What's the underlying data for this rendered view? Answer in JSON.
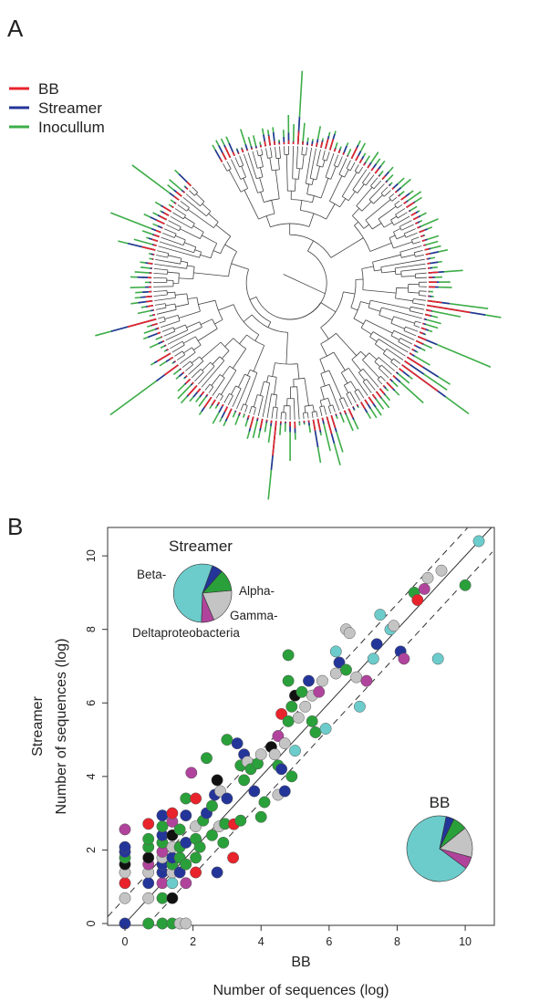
{
  "panel_a_letter": "A",
  "panel_b_letter": "B",
  "colors": {
    "BB": "#e8232b",
    "Streamer": "#24359a",
    "Inocullum": "#3dad48",
    "Beta": "#6ccccb",
    "Alpha": "#2aa03a",
    "Gamma": "#c4c4c4",
    "Delta": "#b0449c",
    "black": "#111111"
  },
  "chart_data": [
    {
      "type": "tree",
      "title": "",
      "legend": [
        {
          "name": "BB",
          "color": "#e8232b"
        },
        {
          "name": "Streamer",
          "color": "#24359a"
        },
        {
          "name": "Inocullum",
          "color": "#3dad48"
        }
      ],
      "legend_position": "top-left"
    },
    {
      "type": "scatter",
      "title": "",
      "xlabel": "BB",
      "xlabel_outer": "Number of sequences (log)",
      "ylabel_line1": "Streamer",
      "ylabel_line2": "Number of sequences (log)",
      "xlim": [
        -0.5,
        10.8
      ],
      "ylim": [
        -0.5,
        10.8
      ],
      "xticks": [
        0,
        2,
        4,
        6,
        8,
        10
      ],
      "yticks": [
        0,
        2,
        4,
        6,
        8,
        10
      ],
      "xtick_labels": [
        "0",
        "2",
        "4",
        "6",
        "8",
        "10"
      ],
      "ytick_labels": [
        "0",
        "2",
        "4",
        "6",
        "8",
        "10"
      ],
      "reference_lines": [
        {
          "slope": 1,
          "intercept": 0,
          "style": "solid"
        },
        {
          "slope": 1,
          "intercept": 0.693,
          "style": "dashed"
        },
        {
          "slope": 1,
          "intercept": -0.693,
          "style": "dashed"
        }
      ],
      "points": [
        {
          "x": 0,
          "y": 0,
          "g": "Streamer"
        },
        {
          "x": 0,
          "y": 0.69,
          "g": "Gamma"
        },
        {
          "x": 0,
          "y": 1.1,
          "g": "BB"
        },
        {
          "x": 0,
          "y": 1.39,
          "g": "Gamma"
        },
        {
          "x": 0,
          "y": 1.61,
          "g": "black"
        },
        {
          "x": 0,
          "y": 1.79,
          "g": "Alpha"
        },
        {
          "x": 0,
          "y": 1.95,
          "g": "Streamer"
        },
        {
          "x": 0,
          "y": 2.08,
          "g": "Streamer"
        },
        {
          "x": 0,
          "y": 2.56,
          "g": "Delta"
        },
        {
          "x": 0.69,
          "y": 0,
          "g": "Alpha"
        },
        {
          "x": 0.69,
          "y": 0.69,
          "g": "Gamma"
        },
        {
          "x": 0.69,
          "y": 1.1,
          "g": "Streamer"
        },
        {
          "x": 0.69,
          "y": 1.39,
          "g": "Gamma"
        },
        {
          "x": 0.69,
          "y": 1.61,
          "g": "Delta"
        },
        {
          "x": 0.69,
          "y": 1.79,
          "g": "black"
        },
        {
          "x": 0.69,
          "y": 2.08,
          "g": "Alpha"
        },
        {
          "x": 0.69,
          "y": 2.3,
          "g": "Alpha"
        },
        {
          "x": 0.69,
          "y": 2.71,
          "g": "BB"
        },
        {
          "x": 1.1,
          "y": 0,
          "g": "Alpha"
        },
        {
          "x": 1.1,
          "y": 0.69,
          "g": "Alpha"
        },
        {
          "x": 1.1,
          "y": 1.1,
          "g": "Delta"
        },
        {
          "x": 1.1,
          "y": 1.39,
          "g": "Streamer"
        },
        {
          "x": 1.1,
          "y": 1.61,
          "g": "Streamer"
        },
        {
          "x": 1.1,
          "y": 1.79,
          "g": "Gamma"
        },
        {
          "x": 1.1,
          "y": 1.95,
          "g": "Delta"
        },
        {
          "x": 1.1,
          "y": 2.2,
          "g": "Alpha"
        },
        {
          "x": 1.1,
          "y": 2.4,
          "g": "Streamer"
        },
        {
          "x": 1.1,
          "y": 2.64,
          "g": "Alpha"
        },
        {
          "x": 1.1,
          "y": 2.94,
          "g": "Streamer"
        },
        {
          "x": 1.39,
          "y": 0,
          "g": "Alpha"
        },
        {
          "x": 1.39,
          "y": 0.69,
          "g": "black"
        },
        {
          "x": 1.39,
          "y": 1.1,
          "g": "Beta"
        },
        {
          "x": 1.39,
          "y": 1.39,
          "g": "Gamma"
        },
        {
          "x": 1.39,
          "y": 1.61,
          "g": "Alpha"
        },
        {
          "x": 1.39,
          "y": 1.79,
          "g": "Streamer"
        },
        {
          "x": 1.39,
          "y": 2.08,
          "g": "Gamma"
        },
        {
          "x": 1.39,
          "y": 2.4,
          "g": "black"
        },
        {
          "x": 1.39,
          "y": 2.77,
          "g": "Delta"
        },
        {
          "x": 1.39,
          "y": 3.0,
          "g": "BB"
        },
        {
          "x": 1.61,
          "y": 0,
          "g": "Gamma"
        },
        {
          "x": 1.61,
          "y": 1.39,
          "g": "Streamer"
        },
        {
          "x": 1.61,
          "y": 1.79,
          "g": "Alpha"
        },
        {
          "x": 1.61,
          "y": 2.08,
          "g": "Alpha"
        },
        {
          "x": 1.61,
          "y": 2.56,
          "g": "Alpha"
        },
        {
          "x": 1.79,
          "y": 0,
          "g": "Gamma"
        },
        {
          "x": 1.79,
          "y": 1.1,
          "g": "Delta"
        },
        {
          "x": 1.79,
          "y": 1.61,
          "g": "Alpha"
        },
        {
          "x": 1.79,
          "y": 2.2,
          "g": "Streamer"
        },
        {
          "x": 1.79,
          "y": 2.94,
          "g": "Streamer"
        },
        {
          "x": 1.79,
          "y": 3.4,
          "g": "Alpha"
        },
        {
          "x": 1.95,
          "y": 4.1,
          "g": "Delta"
        },
        {
          "x": 2.08,
          "y": 1.39,
          "g": "BB"
        },
        {
          "x": 2.08,
          "y": 1.79,
          "g": "Alpha"
        },
        {
          "x": 2.08,
          "y": 2.3,
          "g": "Alpha"
        },
        {
          "x": 2.08,
          "y": 2.64,
          "g": "Gamma"
        },
        {
          "x": 2.08,
          "y": 3.4,
          "g": "BB"
        },
        {
          "x": 2.2,
          "y": 2.08,
          "g": "Alpha"
        },
        {
          "x": 2.3,
          "y": 2.8,
          "g": "Alpha"
        },
        {
          "x": 2.4,
          "y": 3.0,
          "g": "Streamer"
        },
        {
          "x": 2.4,
          "y": 4.5,
          "g": "Alpha"
        },
        {
          "x": 2.56,
          "y": 2.4,
          "g": "Alpha"
        },
        {
          "x": 2.56,
          "y": 3.2,
          "g": "Alpha"
        },
        {
          "x": 2.64,
          "y": 3.5,
          "g": "Streamer"
        },
        {
          "x": 2.71,
          "y": 1.39,
          "g": "Streamer"
        },
        {
          "x": 2.71,
          "y": 3.9,
          "g": "black"
        },
        {
          "x": 2.77,
          "y": 2.64,
          "g": "Gamma"
        },
        {
          "x": 2.8,
          "y": 3.6,
          "g": "Gamma"
        },
        {
          "x": 2.89,
          "y": 2.2,
          "g": "Alpha"
        },
        {
          "x": 2.94,
          "y": 2.71,
          "g": "Alpha"
        },
        {
          "x": 3.0,
          "y": 3.4,
          "g": "Streamer"
        },
        {
          "x": 3.0,
          "y": 5.0,
          "g": "Alpha"
        },
        {
          "x": 3.18,
          "y": 1.79,
          "g": "BB"
        },
        {
          "x": 3.2,
          "y": 2.7,
          "g": "BB"
        },
        {
          "x": 3.3,
          "y": 4.9,
          "g": "Streamer"
        },
        {
          "x": 3.4,
          "y": 2.8,
          "g": "Alpha"
        },
        {
          "x": 3.4,
          "y": 4.3,
          "g": "Alpha"
        },
        {
          "x": 3.5,
          "y": 3.9,
          "g": "Alpha"
        },
        {
          "x": 3.5,
          "y": 4.6,
          "g": "Streamer"
        },
        {
          "x": 3.6,
          "y": 4.4,
          "g": "Gamma"
        },
        {
          "x": 3.7,
          "y": 4.2,
          "g": "Alpha"
        },
        {
          "x": 3.8,
          "y": 3.6,
          "g": "Streamer"
        },
        {
          "x": 3.9,
          "y": 4.35,
          "g": "Alpha"
        },
        {
          "x": 4.0,
          "y": 2.9,
          "g": "Alpha"
        },
        {
          "x": 4.0,
          "y": 4.6,
          "g": "Gamma"
        },
        {
          "x": 4.1,
          "y": 3.3,
          "g": "Alpha"
        },
        {
          "x": 4.3,
          "y": 4.8,
          "g": "black"
        },
        {
          "x": 4.4,
          "y": 4.6,
          "g": "Gamma"
        },
        {
          "x": 4.5,
          "y": 3.5,
          "g": "Gamma"
        },
        {
          "x": 4.5,
          "y": 4.3,
          "g": "Alpha"
        },
        {
          "x": 4.5,
          "y": 5.1,
          "g": "Delta"
        },
        {
          "x": 4.6,
          "y": 4.2,
          "g": "Streamer"
        },
        {
          "x": 4.6,
          "y": 5.7,
          "g": "BB"
        },
        {
          "x": 4.7,
          "y": 3.6,
          "g": "Streamer"
        },
        {
          "x": 4.7,
          "y": 4.9,
          "g": "Gamma"
        },
        {
          "x": 4.8,
          "y": 5.5,
          "g": "Alpha"
        },
        {
          "x": 4.8,
          "y": 6.6,
          "g": "Alpha"
        },
        {
          "x": 4.8,
          "y": 7.3,
          "g": "Alpha"
        },
        {
          "x": 4.9,
          "y": 4.0,
          "g": "Alpha"
        },
        {
          "x": 4.9,
          "y": 5.9,
          "g": "Alpha"
        },
        {
          "x": 5.0,
          "y": 4.7,
          "g": "Beta"
        },
        {
          "x": 5.0,
          "y": 6.2,
          "g": "black"
        },
        {
          "x": 5.1,
          "y": 5.6,
          "g": "Gamma"
        },
        {
          "x": 5.2,
          "y": 6.3,
          "g": "Alpha"
        },
        {
          "x": 5.3,
          "y": 5.9,
          "g": "Gamma"
        },
        {
          "x": 5.4,
          "y": 6.6,
          "g": "Streamer"
        },
        {
          "x": 5.5,
          "y": 5.5,
          "g": "Alpha"
        },
        {
          "x": 5.5,
          "y": 6.2,
          "g": "Gamma"
        },
        {
          "x": 5.6,
          "y": 5.2,
          "g": "Alpha"
        },
        {
          "x": 5.7,
          "y": 6.3,
          "g": "Delta"
        },
        {
          "x": 5.8,
          "y": 6.6,
          "g": "Gamma"
        },
        {
          "x": 5.9,
          "y": 5.3,
          "g": "Beta"
        },
        {
          "x": 6.2,
          "y": 6.8,
          "g": "Gamma"
        },
        {
          "x": 6.2,
          "y": 7.4,
          "g": "Beta"
        },
        {
          "x": 6.3,
          "y": 7.1,
          "g": "Streamer"
        },
        {
          "x": 6.5,
          "y": 6.9,
          "g": "Alpha"
        },
        {
          "x": 6.5,
          "y": 8.0,
          "g": "Gamma"
        },
        {
          "x": 6.6,
          "y": 7.9,
          "g": "Gamma"
        },
        {
          "x": 6.8,
          "y": 6.7,
          "g": "Gamma"
        },
        {
          "x": 6.9,
          "y": 5.9,
          "g": "Beta"
        },
        {
          "x": 7.1,
          "y": 6.6,
          "g": "Delta"
        },
        {
          "x": 7.3,
          "y": 7.2,
          "g": "Beta"
        },
        {
          "x": 7.4,
          "y": 7.6,
          "g": "Streamer"
        },
        {
          "x": 7.5,
          "y": 8.4,
          "g": "Beta"
        },
        {
          "x": 7.8,
          "y": 8.0,
          "g": "Beta"
        },
        {
          "x": 7.9,
          "y": 8.1,
          "g": "Gamma"
        },
        {
          "x": 8.1,
          "y": 7.4,
          "g": "Streamer"
        },
        {
          "x": 8.2,
          "y": 7.2,
          "g": "Delta"
        },
        {
          "x": 8.5,
          "y": 9.0,
          "g": "Alpha"
        },
        {
          "x": 8.6,
          "y": 8.8,
          "g": "BB"
        },
        {
          "x": 8.8,
          "y": 9.1,
          "g": "Delta"
        },
        {
          "x": 8.9,
          "y": 9.4,
          "g": "Gamma"
        },
        {
          "x": 9.2,
          "y": 7.2,
          "g": "Beta"
        },
        {
          "x": 9.3,
          "y": 9.6,
          "g": "Gamma"
        },
        {
          "x": 10.0,
          "y": 9.2,
          "g": "Alpha"
        },
        {
          "x": 10.4,
          "y": 10.4,
          "g": "Beta"
        }
      ],
      "inset_pies": [
        {
          "title": "Streamer",
          "slices": [
            {
              "name": "Beta-",
              "value": 0.55,
              "color": "#6ccccb"
            },
            {
              "name": "Alpha-",
              "value": 0.06,
              "color": "#24359a"
            },
            {
              "name": "",
              "value": 0.12,
              "color": "#2aa03a"
            },
            {
              "name": "Gamma-",
              "value": 0.2,
              "color": "#c4c4c4"
            },
            {
              "name": "Deltaproteobacteria",
              "value": 0.07,
              "color": "#b0449c"
            }
          ]
        },
        {
          "title": "BB",
          "slices": [
            {
              "name": "",
              "value": 0.68,
              "color": "#6ccccb"
            },
            {
              "name": "",
              "value": 0.04,
              "color": "#24359a"
            },
            {
              "name": "",
              "value": 0.07,
              "color": "#2aa03a"
            },
            {
              "name": "",
              "value": 0.15,
              "color": "#c4c4c4"
            },
            {
              "name": "",
              "value": 0.06,
              "color": "#b0449c"
            }
          ]
        }
      ]
    }
  ]
}
